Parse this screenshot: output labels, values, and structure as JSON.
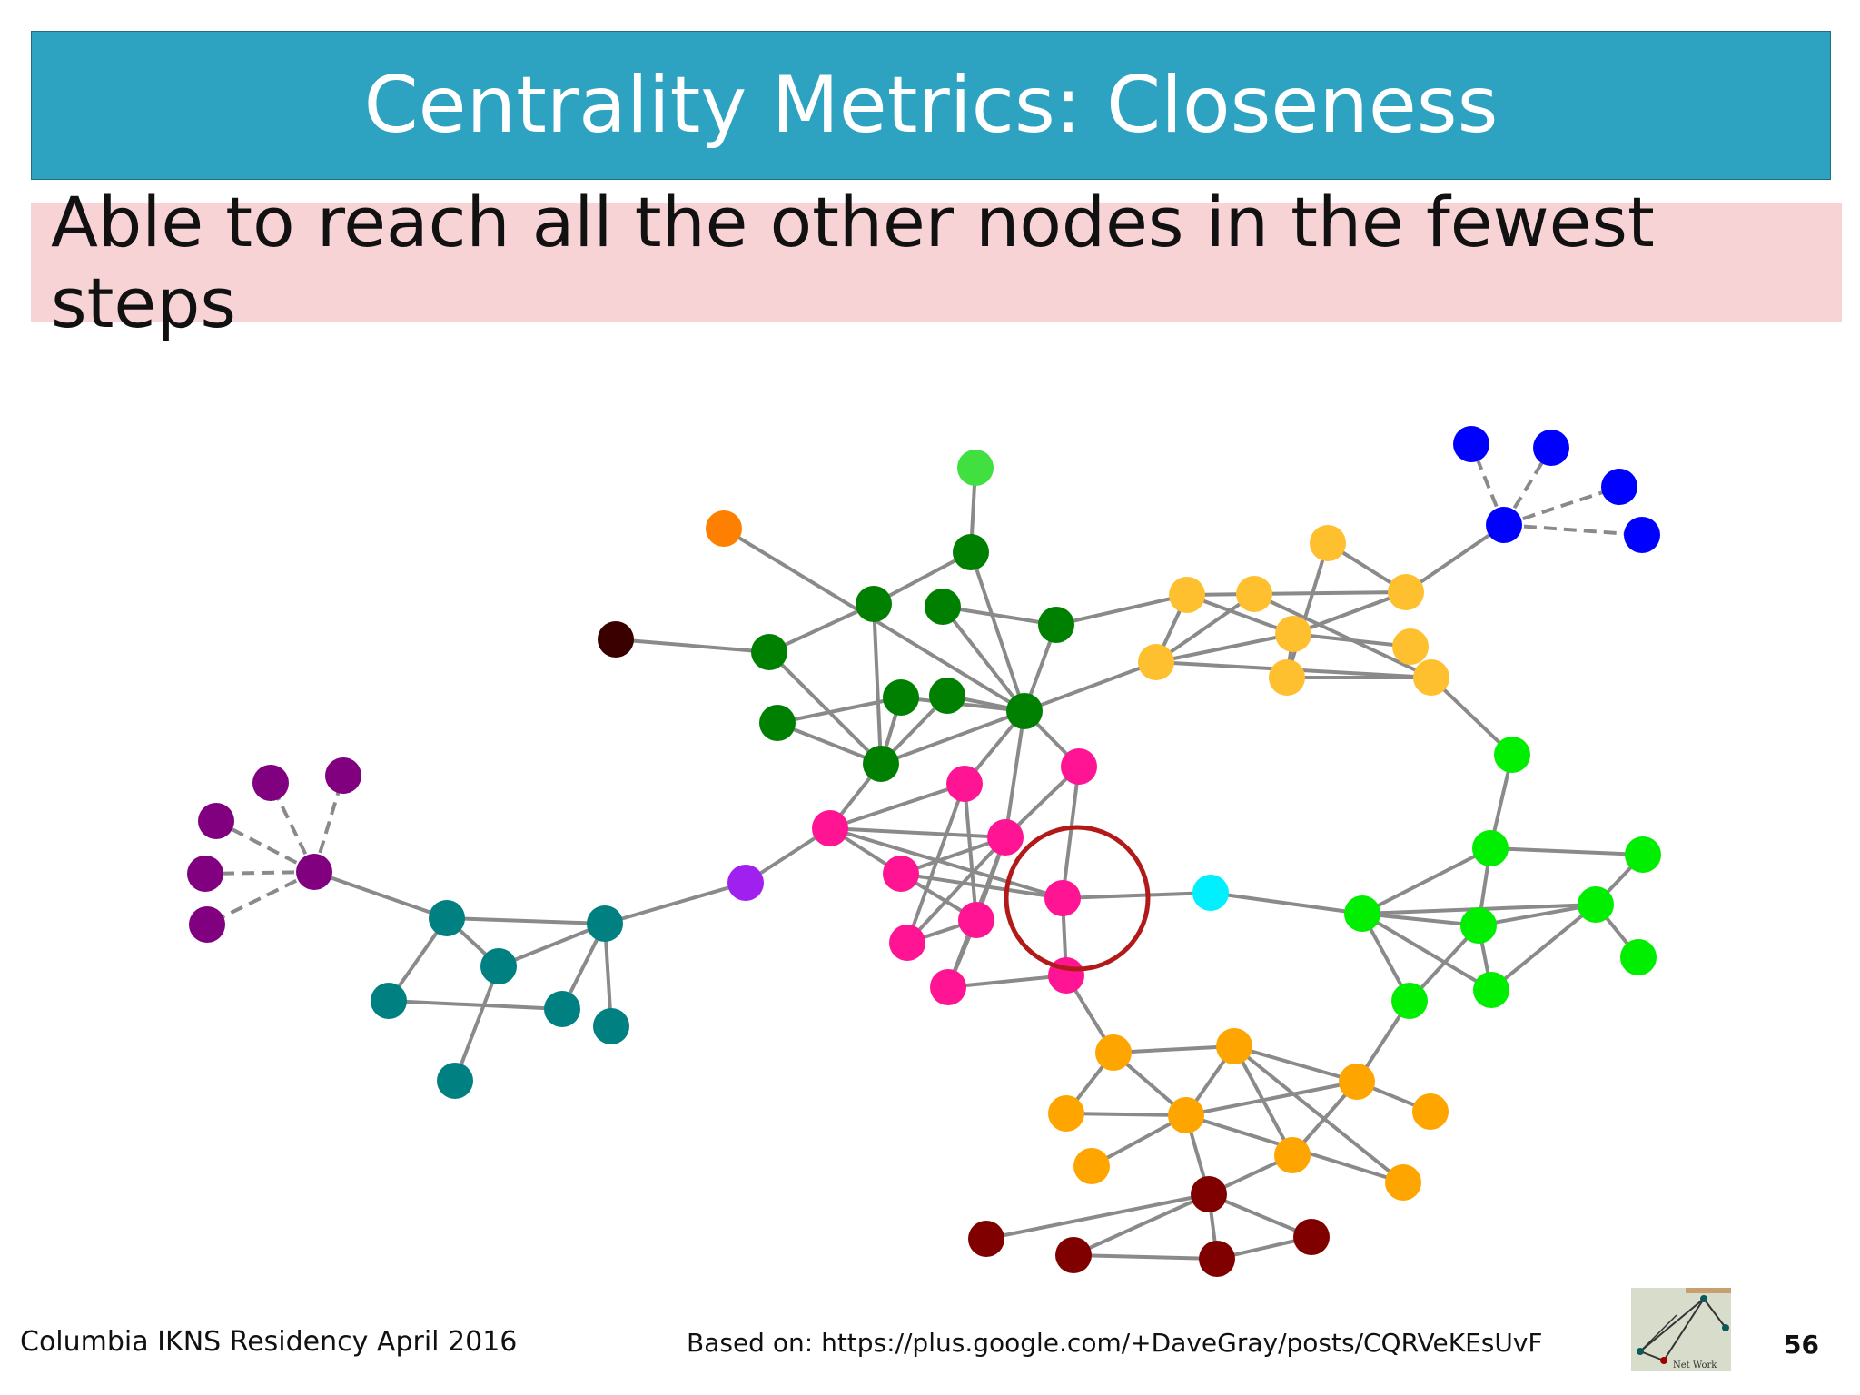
{
  "slide": {
    "title": "Centrality Metrics: Closeness",
    "subtitle": "Able to reach all the other nodes in the fewest steps",
    "footer_left": "Columbia IKNS Residency April 2016",
    "footer_center": "Based on: https://plus.google.com/+DaveGray/posts/CQRVeKEsUvF",
    "page_number": "56",
    "logo_text": "Net Work"
  },
  "colors": {
    "title_bar": "#2ea3c1",
    "subtitle_bar": "#f8d3d5",
    "edge": "#8a8a8a",
    "highlight_ring": "#b21a1a"
  },
  "network": {
    "highlighted_node": "pink-center",
    "clusters": [
      {
        "name": "purple",
        "color": "#800080"
      },
      {
        "name": "teal",
        "color": "#008080"
      },
      {
        "name": "violet",
        "color": "#a020f0"
      },
      {
        "name": "dark-green",
        "color": "#008000"
      },
      {
        "name": "light-green-top",
        "color": "#40e040"
      },
      {
        "name": "orange-top",
        "color": "#ff8000"
      },
      {
        "name": "dark-brown",
        "color": "#3a0000"
      },
      {
        "name": "pink",
        "color": "#ff1493"
      },
      {
        "name": "cyan",
        "color": "#00f0ff"
      },
      {
        "name": "gold",
        "color": "#ffc030"
      },
      {
        "name": "blue",
        "color": "#0000ff"
      },
      {
        "name": "lime",
        "color": "#00ee00"
      },
      {
        "name": "orange",
        "color": "#ffa500"
      },
      {
        "name": "maroon",
        "color": "#800000"
      }
    ]
  }
}
